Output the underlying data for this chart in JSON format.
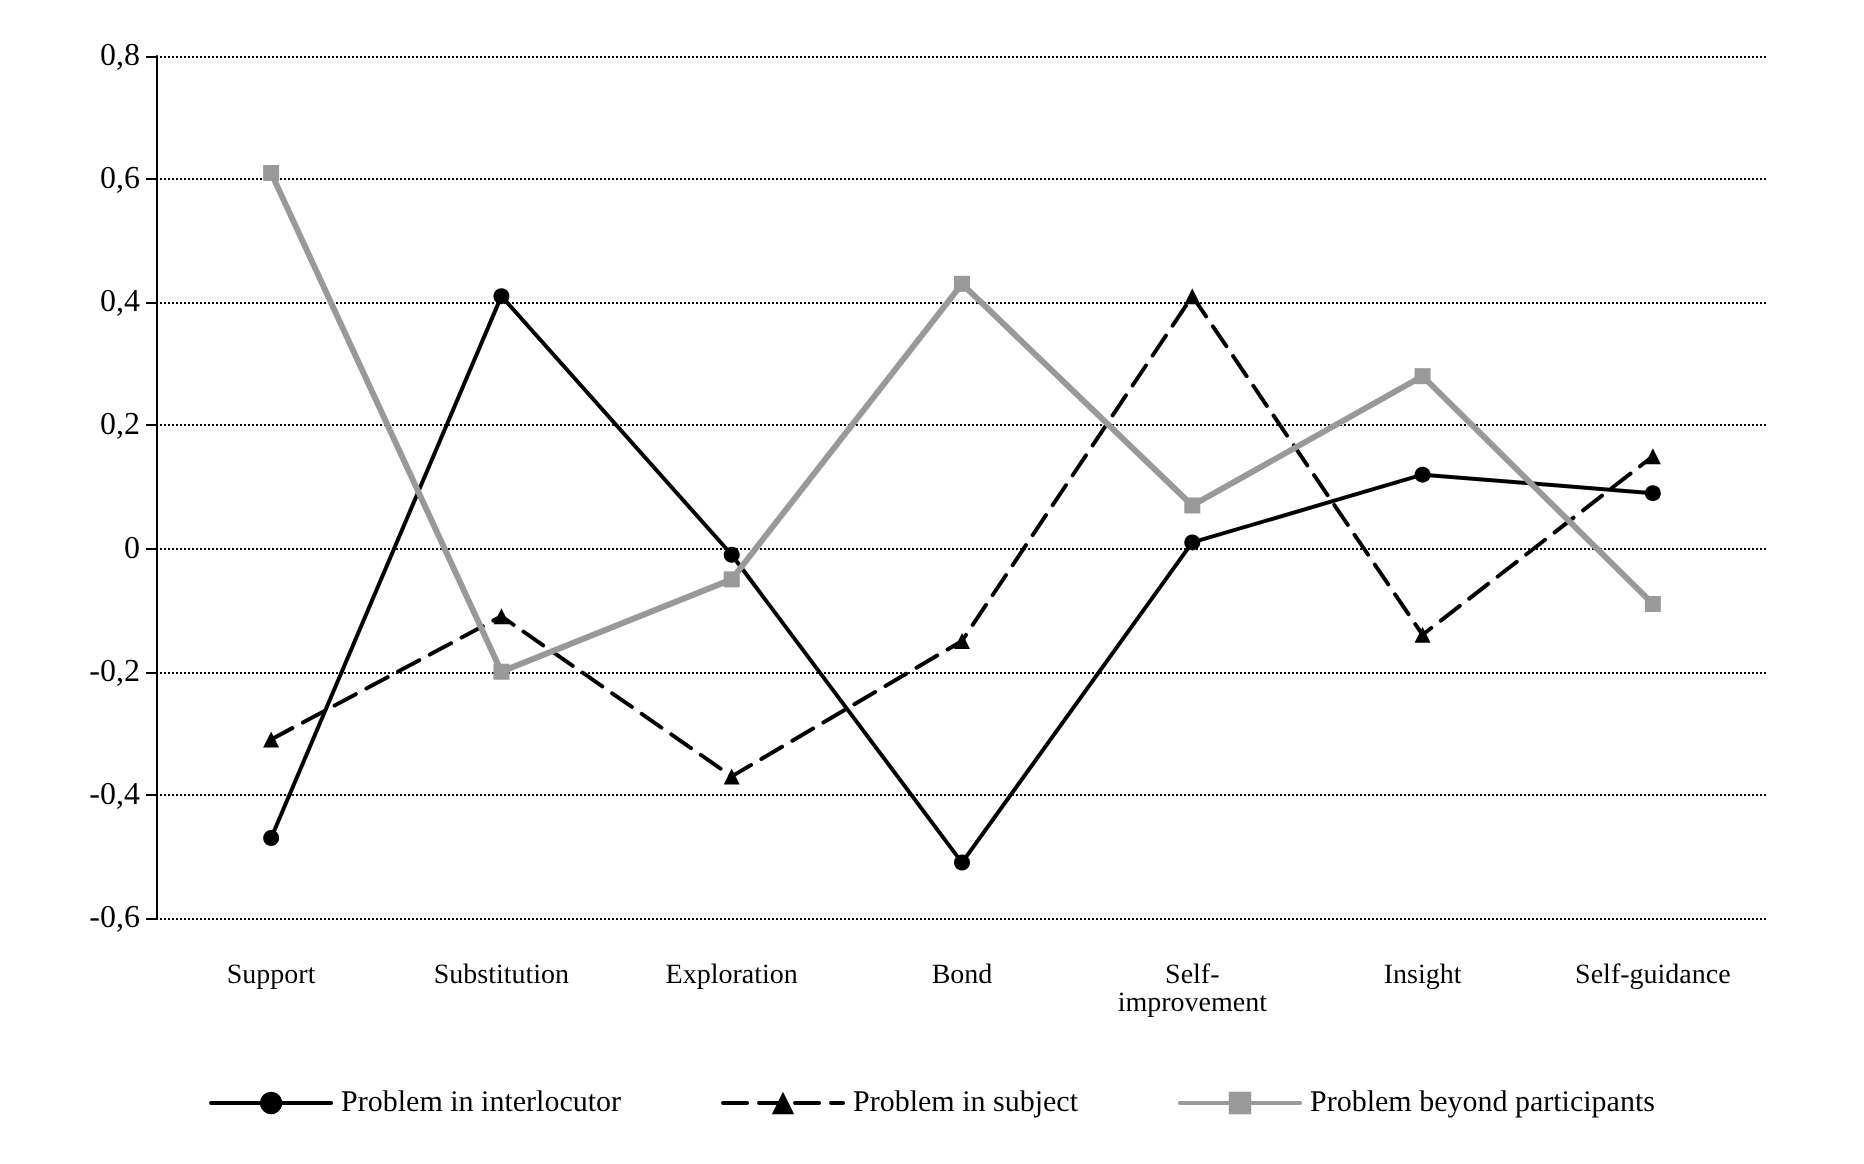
{
  "chart_data": {
    "type": "line",
    "categories": [
      "Support",
      "Substitution",
      "Exploration",
      "Bond",
      "Self-improvement",
      "Insight",
      "Self-guidance"
    ],
    "series": [
      {
        "name": "Problem in interlocutor",
        "color": "#000000",
        "marker": "circle",
        "line_style": "solid",
        "values": [
          -0.47,
          0.41,
          -0.01,
          -0.51,
          0.01,
          0.12,
          0.09
        ]
      },
      {
        "name": "Problem in subject",
        "color": "#000000",
        "marker": "triangle",
        "line_style": "dashed",
        "values": [
          -0.31,
          -0.11,
          -0.37,
          -0.15,
          0.41,
          -0.14,
          0.15
        ]
      },
      {
        "name": "Problem beyond participants",
        "color": "#999999",
        "marker": "square",
        "line_style": "solid",
        "values": [
          0.61,
          -0.2,
          -0.05,
          0.43,
          0.07,
          0.28,
          -0.09
        ]
      }
    ],
    "ylim": [
      -0.6,
      0.8
    ],
    "yticks": [
      {
        "value": -0.6,
        "label": "-0,6"
      },
      {
        "value": -0.4,
        "label": "-0,4"
      },
      {
        "value": -0.2,
        "label": "-0,2"
      },
      {
        "value": 0,
        "label": "0"
      },
      {
        "value": 0.2,
        "label": "0,2"
      },
      {
        "value": 0.4,
        "label": "0,4"
      },
      {
        "value": 0.6,
        "label": "0,6"
      },
      {
        "value": 0.8,
        "label": "0,8"
      }
    ],
    "grid": "y",
    "legend": "bottom"
  }
}
